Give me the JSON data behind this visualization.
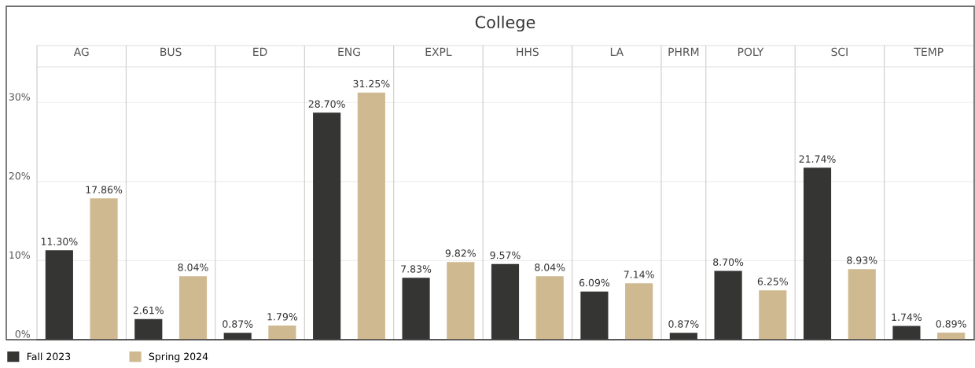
{
  "chart_data": {
    "type": "bar",
    "title": "College",
    "categories": [
      "AG",
      "BUS",
      "ED",
      "ENG",
      "EXPL",
      "HHS",
      "LA",
      "PHRM",
      "POLY",
      "SCI",
      "TEMP"
    ],
    "series": [
      {
        "name": "Fall 2023",
        "color": "#353633",
        "values": [
          11.3,
          2.61,
          0.87,
          28.7,
          7.83,
          9.57,
          6.09,
          0.87,
          8.7,
          21.74,
          1.74
        ],
        "value_labels": [
          "11.30%",
          "2.61%",
          "0.87%",
          "28.70%",
          "7.83%",
          "9.57%",
          "6.09%",
          "0.87%",
          "8.70%",
          "21.74%",
          "1.74%"
        ]
      },
      {
        "name": "Spring 2024",
        "color": "#cfb991",
        "values": [
          17.86,
          8.04,
          1.79,
          31.25,
          9.82,
          8.04,
          7.14,
          null,
          6.25,
          8.93,
          0.89
        ],
        "value_labels": [
          "17.86%",
          "8.04%",
          "1.79%",
          "31.25%",
          "9.82%",
          "8.04%",
          "7.14%",
          null,
          "6.25%",
          "8.93%",
          "0.89%"
        ]
      }
    ],
    "ylim": [
      0,
      34.5
    ],
    "yticks": [
      {
        "value": 0,
        "label": "0%"
      },
      {
        "value": 10,
        "label": "10%"
      },
      {
        "value": 20,
        "label": "20%"
      },
      {
        "value": 30,
        "label": "30%"
      }
    ],
    "grid": "y",
    "legend": "bottom left"
  }
}
